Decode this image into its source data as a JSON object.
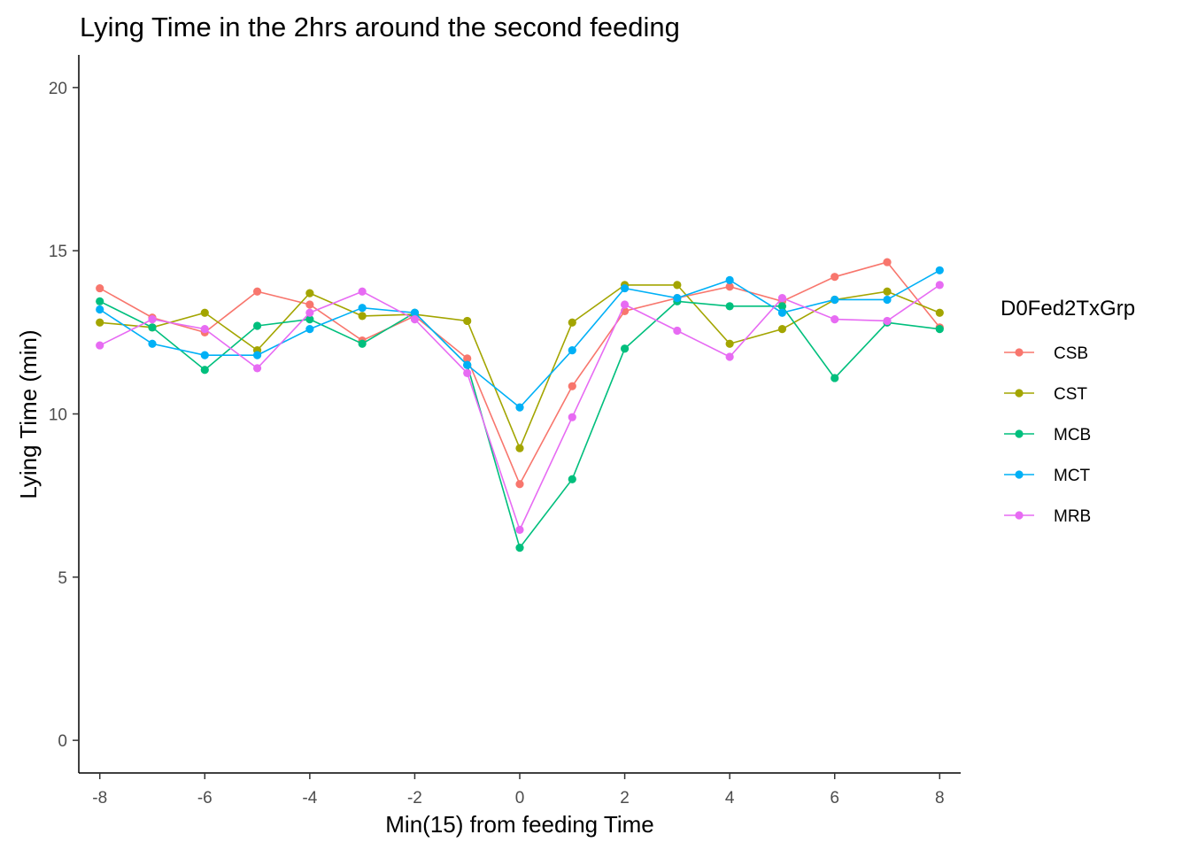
{
  "chart_data": {
    "type": "line",
    "title": "Lying Time in the 2hrs around the second feeding",
    "xlabel": "Min(15) from feeding Time",
    "ylabel": "Lying Time (min)",
    "xlim": [
      -8.4,
      8.4
    ],
    "ylim": [
      -1,
      21
    ],
    "xticks": [
      -8,
      -6,
      -4,
      -2,
      0,
      2,
      4,
      6,
      8
    ],
    "yticks": [
      0,
      5,
      10,
      15,
      20
    ],
    "x": [
      -8,
      -7,
      -6,
      -5,
      -4,
      -3,
      -2,
      -1,
      0,
      1,
      2,
      3,
      4,
      5,
      6,
      7,
      8
    ],
    "grid": false,
    "legend": {
      "title": "D0Fed2TxGrp",
      "placement": "right"
    },
    "series": [
      {
        "name": "CSB",
        "color": "#F8766D",
        "values": [
          13.85,
          12.95,
          12.5,
          13.75,
          13.35,
          12.25,
          13.0,
          11.7,
          7.85,
          10.85,
          13.15,
          13.55,
          13.9,
          13.45,
          14.2,
          14.65,
          12.65
        ]
      },
      {
        "name": "CST",
        "color": "#A3A500",
        "values": [
          12.8,
          12.65,
          13.1,
          11.95,
          13.7,
          13.0,
          13.05,
          12.85,
          8.95,
          12.8,
          13.95,
          13.95,
          12.15,
          12.6,
          13.5,
          13.75,
          13.1
        ]
      },
      {
        "name": "MCB",
        "color": "#00BF7D",
        "values": [
          13.45,
          12.65,
          11.35,
          12.7,
          12.9,
          12.15,
          13.1,
          11.5,
          5.9,
          8.0,
          12.0,
          13.45,
          13.3,
          13.3,
          11.1,
          12.8,
          12.6
        ]
      },
      {
        "name": "MCT",
        "color": "#00B0F6",
        "values": [
          13.2,
          12.15,
          11.8,
          11.8,
          12.6,
          13.25,
          13.1,
          11.5,
          10.2,
          11.95,
          13.85,
          13.55,
          14.1,
          13.1,
          13.5,
          13.5,
          14.4
        ]
      },
      {
        "name": "MRB",
        "color": "#E76BF3",
        "values": [
          12.1,
          12.9,
          12.6,
          11.4,
          13.1,
          13.75,
          12.9,
          11.25,
          6.45,
          9.9,
          13.35,
          12.55,
          11.75,
          13.55,
          12.9,
          12.85,
          13.95
        ]
      }
    ]
  }
}
